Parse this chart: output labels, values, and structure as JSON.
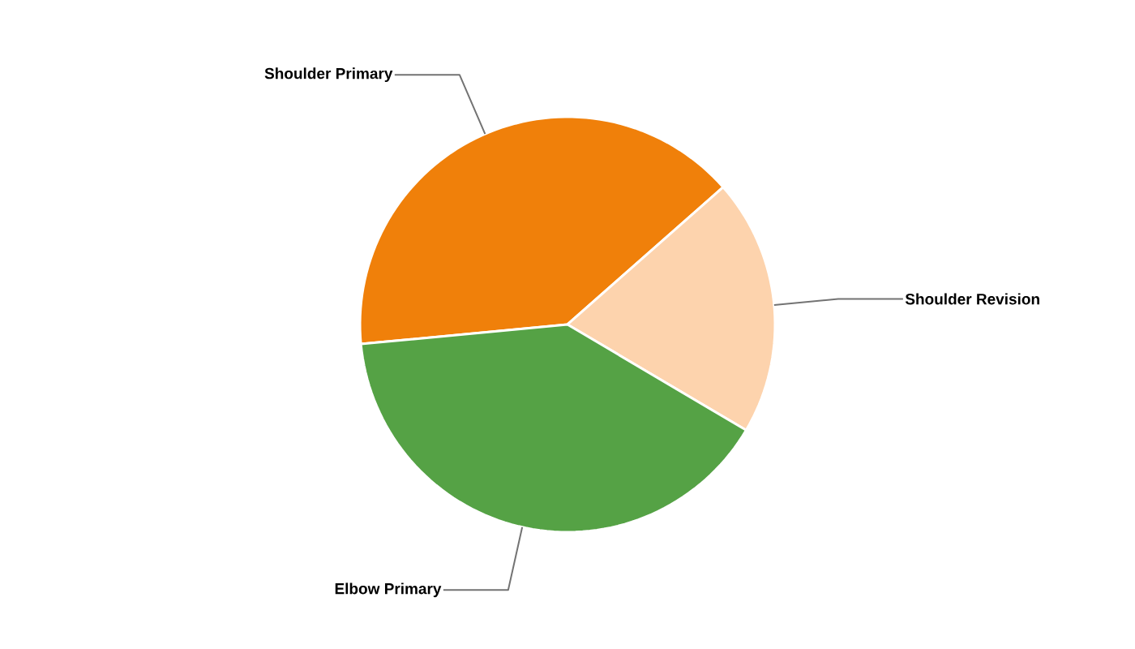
{
  "chart_data": {
    "type": "pie",
    "categories": [
      "Shoulder Primary",
      "Shoulder Revision",
      "Elbow Primary"
    ],
    "values": [
      40,
      20,
      40
    ],
    "colors": [
      "#f0800a",
      "#fdd3ad",
      "#55a245"
    ]
  }
}
